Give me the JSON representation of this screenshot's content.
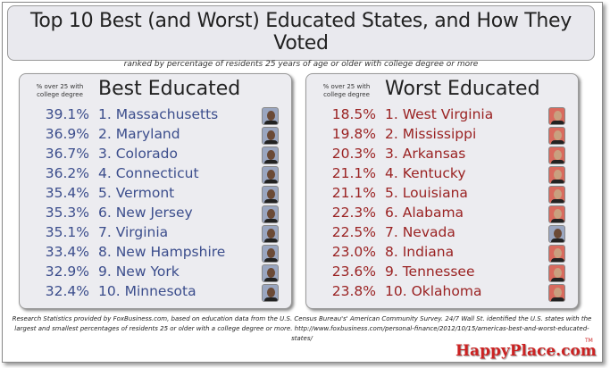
{
  "header": {
    "title": "Top 10 Best (and Worst) Educated States, and How They Voted",
    "subtitle": "ranked by percentage of residents 25 years of age or older with college degree or more"
  },
  "best": {
    "note": "% over 25 with college degree",
    "title": "Best Educated",
    "party_color": "#3b4d8c",
    "rows": [
      {
        "pct": "39.1%",
        "state": "1. Massachusetts",
        "vote": "obama"
      },
      {
        "pct": "36.9%",
        "state": "2. Maryland",
        "vote": "obama"
      },
      {
        "pct": "36.7%",
        "state": "3. Colorado",
        "vote": "obama"
      },
      {
        "pct": "36.2%",
        "state": "4. Connecticut",
        "vote": "obama"
      },
      {
        "pct": "35.4%",
        "state": "5. Vermont",
        "vote": "obama"
      },
      {
        "pct": "35.3%",
        "state": "6. New Jersey",
        "vote": "obama"
      },
      {
        "pct": "35.1%",
        "state": "7. Virginia",
        "vote": "obama"
      },
      {
        "pct": "33.4%",
        "state": "8. New Hampshire",
        "vote": "obama"
      },
      {
        "pct": "32.9%",
        "state": "9. New York",
        "vote": "obama"
      },
      {
        "pct": "32.4%",
        "state": "10. Minnesota",
        "vote": "obama"
      }
    ]
  },
  "worst": {
    "note": "% over 25 with college degree",
    "title": "Worst Educated",
    "party_color": "#9a2222",
    "rows": [
      {
        "pct": "18.5%",
        "state": "1. West Virginia",
        "vote": "romney"
      },
      {
        "pct": "19.8%",
        "state": "2. Mississippi",
        "vote": "romney"
      },
      {
        "pct": "20.3%",
        "state": "3. Arkansas",
        "vote": "romney"
      },
      {
        "pct": "21.1%",
        "state": "4. Kentucky",
        "vote": "romney"
      },
      {
        "pct": "21.1%",
        "state": "5. Louisiana",
        "vote": "romney"
      },
      {
        "pct": "22.3%",
        "state": "6. Alabama",
        "vote": "romney"
      },
      {
        "pct": "22.5%",
        "state": "7. Nevada",
        "vote": "obama"
      },
      {
        "pct": "23.0%",
        "state": "8. Indiana",
        "vote": "romney"
      },
      {
        "pct": "23.6%",
        "state": "9. Tennessee",
        "vote": "romney"
      },
      {
        "pct": "23.8%",
        "state": "10. Oklahoma",
        "vote": "romney"
      }
    ]
  },
  "footer": {
    "text": "Research Statistics provided by FoxBusiness.com, based on education data from the U.S. Census Bureau's' American Community Survey. 24/7 Wall St. identified the U.S. states with the largest and smallest percentages of residents 25 or older with a college degree or more. http://www.foxbusiness.com/personal-finance/2012/10/15/americas-best-and-worst-educated-states/",
    "logo": "HappyPlace.com",
    "tm": "TM"
  }
}
